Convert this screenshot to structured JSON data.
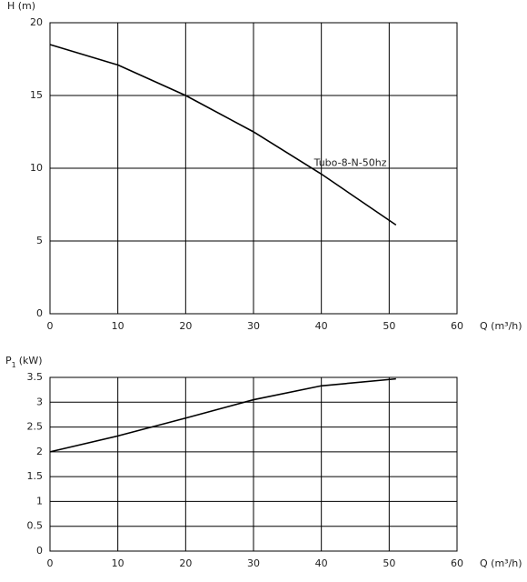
{
  "chart_data": [
    {
      "type": "line",
      "y_label": "H  (m)",
      "x_label": "Q (m³/h)",
      "x": [
        0,
        10,
        20,
        30,
        40,
        51
      ],
      "series": [
        {
          "name": "Tubo-8-N-50hz",
          "color": "#000000",
          "values": [
            18.5,
            17.1,
            15,
            12.5,
            9.6,
            6.1
          ]
        }
      ],
      "xlim": [
        0,
        60
      ],
      "xticks": [
        0,
        10,
        20,
        30,
        40,
        50,
        60
      ],
      "ylim": [
        0,
        20
      ],
      "yticks": [
        0,
        5,
        10,
        15,
        20
      ],
      "grid": true
    },
    {
      "type": "line",
      "y_label": "P",
      "y_label_subscript": "1",
      "y_label_unit": "(kW)",
      "x_label": "Q (m³/h)",
      "x": [
        0,
        10,
        20,
        30,
        40,
        51
      ],
      "series": [
        {
          "color": "#000000",
          "values": [
            2.0,
            2.32,
            2.68,
            3.05,
            3.33,
            3.47
          ]
        }
      ],
      "xlim": [
        0,
        60
      ],
      "xticks": [
        0,
        10,
        20,
        30,
        40,
        50,
        60
      ],
      "ylim": [
        0,
        3.5
      ],
      "yticks": [
        0,
        0.5,
        1,
        1.5,
        2,
        2.5,
        3,
        3.5
      ],
      "grid": true
    }
  ]
}
